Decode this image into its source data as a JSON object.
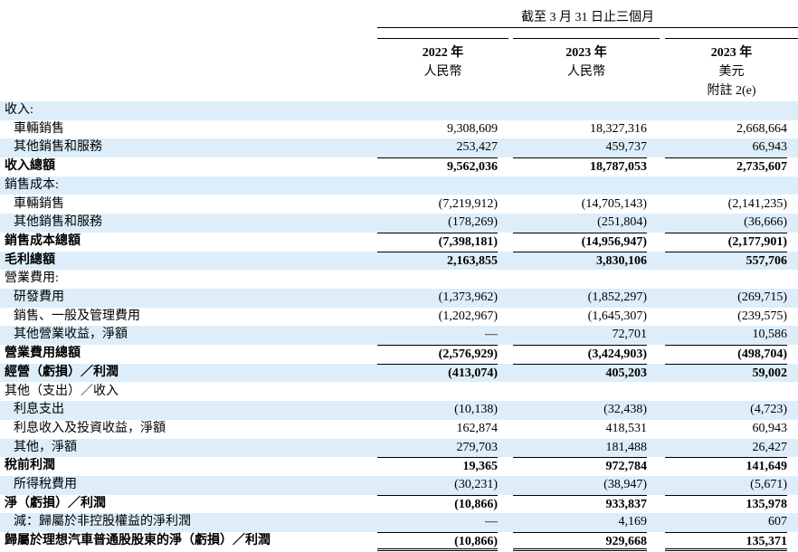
{
  "header": {
    "period": "截至 3 月 31 日止三個月",
    "columns": [
      {
        "year": "2022 年",
        "currency": "人民幣"
      },
      {
        "year": "2023 年",
        "currency": "人民幣"
      },
      {
        "year": "2023 年",
        "currency": "美元",
        "note": "附註 2(e)"
      }
    ]
  },
  "table": {
    "rows": [
      [
        "收入:"
      ],
      [
        "車輛銷售",
        "9,308,609",
        "18,327,316",
        "2,668,664"
      ],
      [
        "其他銷售和服務",
        "253,427",
        "459,737",
        "66,943"
      ],
      [
        "收入總額",
        "9,562,036",
        "18,787,053",
        "2,735,607"
      ],
      [
        "銷售成本:"
      ],
      [
        "車輛銷售",
        "(7,219,912)",
        "(14,705,143)",
        "(2,141,235)"
      ],
      [
        "其他銷售和服務",
        "(178,269)",
        "(251,804)",
        "(36,666)"
      ],
      [
        "銷售成本總額",
        "(7,398,181)",
        "(14,956,947)",
        "(2,177,901)"
      ],
      [
        "毛利總額",
        "2,163,855",
        "3,830,106",
        "557,706"
      ],
      [
        "營業費用:"
      ],
      [
        "研發費用",
        "(1,373,962)",
        "(1,852,297)",
        "(269,715)"
      ],
      [
        "銷售、一般及管理費用",
        "(1,202,967)",
        "(1,645,307)",
        "(239,575)"
      ],
      [
        "其他營業收益，淨額",
        "—",
        "72,701",
        "10,586"
      ],
      [
        "營業費用總額",
        "(2,576,929)",
        "(3,424,903)",
        "(498,704)"
      ],
      [
        "經營（虧損）／利潤",
        "(413,074)",
        "405,203",
        "59,002"
      ],
      [
        "其他（支出）／收入"
      ],
      [
        "利息支出",
        "(10,138)",
        "(32,438)",
        "(4,723)"
      ],
      [
        "利息收入及投資收益，淨額",
        "162,874",
        "418,531",
        "60,943"
      ],
      [
        "其他，淨額",
        "279,703",
        "181,488",
        "26,427"
      ],
      [
        "稅前利潤",
        "19,365",
        "972,784",
        "141,649"
      ],
      [
        "所得稅費用",
        "(30,231)",
        "(38,947)",
        "(5,671)"
      ],
      [
        "淨（虧損）／利潤",
        "(10,866)",
        "933,837",
        "135,978"
      ],
      [
        "減：歸屬於非控股權益的淨利潤",
        "—",
        "4,169",
        "607"
      ],
      [
        "歸屬於理想汽車普通股股東的淨（虧損）／利潤",
        "(10,866)",
        "929,668",
        "135,371"
      ]
    ]
  }
}
